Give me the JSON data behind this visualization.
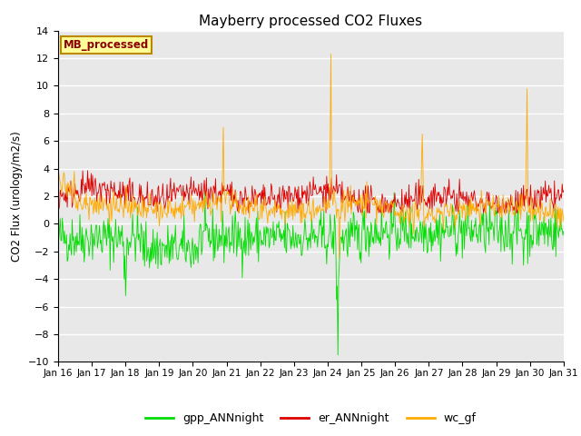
{
  "title": "Mayberry processed CO2 Fluxes",
  "ylabel": "CO2 Flux (urology/m2/s)",
  "ylim": [
    -10,
    14
  ],
  "yticks": [
    -10,
    -8,
    -6,
    -4,
    -2,
    0,
    2,
    4,
    6,
    8,
    10,
    12,
    14
  ],
  "x_tick_labels": [
    "Jan 16",
    "Jan 17",
    "Jan 18",
    "Jan 19",
    "Jan 20",
    "Jan 21",
    "Jan 22",
    "Jan 23",
    "Jan 24",
    "Jan 25",
    "Jan 26",
    "Jan 27",
    "Jan 28",
    "Jan 29",
    "Jan 30",
    "Jan 31"
  ],
  "series_colors": {
    "gpp_ANNnight": "#00dd00",
    "er_ANNnight": "#dd0000",
    "wc_gf": "#ffaa00"
  },
  "legend_entries": [
    "gpp_ANNnight",
    "er_ANNnight",
    "wc_gf"
  ],
  "inset_label": "MB_processed",
  "inset_label_color": "#8b0000",
  "inset_bg_color": "#ffff99",
  "inset_border_color": "#bb8800",
  "background_color": "#e8e8e8",
  "n_points": 720,
  "seed": 42
}
